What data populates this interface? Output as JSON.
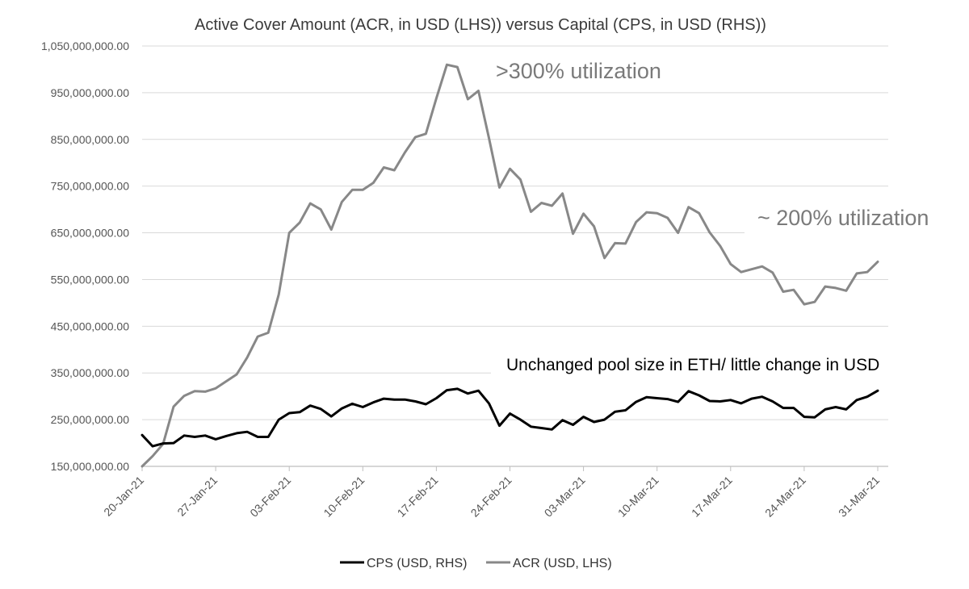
{
  "chart_data": {
    "type": "line",
    "title": "Active Cover Amount (ACR, in USD (LHS)) versus Capital (CPS, in USD (RHS))",
    "xlabel": "",
    "ylabel": "",
    "ylim": [
      150000000,
      1050000000
    ],
    "y_ticks": [
      150000000,
      250000000,
      350000000,
      450000000,
      550000000,
      650000000,
      750000000,
      850000000,
      950000000,
      1050000000
    ],
    "y_tick_labels": [
      "150,000,000.00",
      "250,000,000.00",
      "350,000,000.00",
      "450,000,000.00",
      "550,000,000.00",
      "650,000,000.00",
      "750,000,000.00",
      "850,000,000.00",
      "950,000,000.00",
      "1,050,000,000.00"
    ],
    "x_tick_labels": [
      "20-Jan-21",
      "27-Jan-21",
      "03-Feb-21",
      "10-Feb-21",
      "17-Feb-21",
      "24-Feb-21",
      "03-Mar-21",
      "10-Mar-21",
      "17-Mar-21",
      "24-Mar-21",
      "31-Mar-21"
    ],
    "x_tick_days": [
      0,
      7,
      14,
      21,
      28,
      35,
      42,
      49,
      56,
      63,
      70
    ],
    "x_max_day": 71,
    "grid": "horizontal",
    "legend_position": "bottom",
    "series": [
      {
        "name": "CPS (USD, RHS)",
        "color": "#000000",
        "values": [
          217000000,
          193000000,
          199000000,
          200000000,
          216000000,
          213000000,
          216000000,
          208000000,
          215000000,
          221000000,
          224000000,
          213000000,
          213000000,
          250000000,
          264000000,
          266000000,
          280000000,
          273000000,
          257000000,
          274000000,
          284000000,
          277000000,
          287000000,
          295000000,
          293000000,
          293000000,
          289000000,
          283000000,
          296000000,
          313000000,
          316000000,
          306000000,
          312000000,
          285000000,
          237000000,
          263000000,
          250000000,
          235000000,
          232000000,
          229000000,
          249000000,
          239000000,
          256000000,
          245000000,
          250000000,
          267000000,
          270000000,
          288000000,
          298000000,
          296000000,
          294000000,
          288000000,
          311000000,
          302000000,
          290000000,
          289000000,
          292000000,
          285000000,
          295000000,
          299000000,
          289000000,
          275000000,
          275000000,
          256000000,
          255000000,
          272000000,
          277000000,
          272000000,
          292000000,
          299000000,
          312000000
        ]
      },
      {
        "name": "ACR (USD, LHS)",
        "color": "#888888",
        "values": [
          150000000,
          172000000,
          198000000,
          278000000,
          301000000,
          311000000,
          310000000,
          317000000,
          332000000,
          347000000,
          383000000,
          428000000,
          436000000,
          518000000,
          650000000,
          672000000,
          713000000,
          700000000,
          657000000,
          716000000,
          742000000,
          742000000,
          757000000,
          790000000,
          784000000,
          822000000,
          855000000,
          862000000,
          938000000,
          1010000000,
          1005000000,
          936000000,
          954000000,
          853000000,
          747000000,
          787000000,
          764000000,
          695000000,
          714000000,
          708000000,
          734000000,
          648000000,
          691000000,
          664000000,
          596000000,
          628000000,
          627000000,
          673000000,
          694000000,
          692000000,
          682000000,
          650000000,
          705000000,
          692000000,
          651000000,
          622000000,
          583000000,
          566000000,
          572000000,
          578000000,
          565000000,
          524000000,
          528000000,
          497000000,
          502000000,
          535000000,
          532000000,
          526000000,
          563000000,
          566000000,
          588000000
        ]
      }
    ],
    "annotations": [
      ">300% utilization",
      "~ 200% utilization",
      "Unchanged pool size in ETH/ little change in USD"
    ]
  }
}
